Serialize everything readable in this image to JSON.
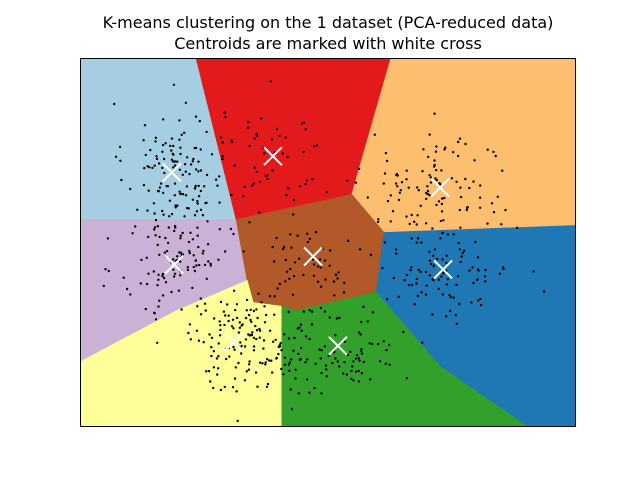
{
  "chart_data": {
    "type": "scatter",
    "title": "K-means clustering on the 1 dataset (PCA-reduced data)",
    "subtitle": "Centroids are marked with white cross",
    "xlabel": "",
    "ylabel": "",
    "xlim": [
      0,
      100
    ],
    "ylim": [
      0,
      100
    ],
    "xticks": [],
    "yticks": [],
    "grid": false,
    "legend": "none",
    "regions": [
      {
        "color": "#a6cee3",
        "polygon": [
          [
            0,
            100
          ],
          [
            23.4,
            100
          ],
          [
            31.5,
            56.2
          ],
          [
            0,
            56.2
          ]
        ]
      },
      {
        "color": "#e31a1c",
        "polygon": [
          [
            23.4,
            100
          ],
          [
            62.7,
            100
          ],
          [
            54.8,
            63.0
          ],
          [
            31.5,
            56.2
          ]
        ]
      },
      {
        "color": "#fdbf6f",
        "polygon": [
          [
            62.7,
            100
          ],
          [
            100,
            100
          ],
          [
            100,
            54.6
          ],
          [
            61.3,
            52.7
          ],
          [
            54.8,
            63.0
          ]
        ]
      },
      {
        "color": "#cab2d6",
        "polygon": [
          [
            0,
            56.2
          ],
          [
            31.5,
            56.2
          ],
          [
            33.7,
            39.7
          ],
          [
            19.4,
            31.5
          ],
          [
            0,
            17.6
          ]
        ]
      },
      {
        "color": "#b15928",
        "polygon": [
          [
            31.5,
            56.2
          ],
          [
            54.8,
            63.0
          ],
          [
            61.3,
            52.7
          ],
          [
            59.7,
            36.5
          ],
          [
            43.5,
            31.5
          ],
          [
            34.9,
            33.7
          ],
          [
            33.7,
            39.7
          ]
        ]
      },
      {
        "color": "#1f78b4",
        "polygon": [
          [
            61.3,
            52.7
          ],
          [
            100,
            54.6
          ],
          [
            100,
            0
          ],
          [
            90.3,
            0
          ],
          [
            72.6,
            16.4
          ],
          [
            59.7,
            36.5
          ]
        ]
      },
      {
        "color": "#ffff99",
        "polygon": [
          [
            0,
            17.6
          ],
          [
            19.4,
            31.5
          ],
          [
            33.7,
            39.7
          ],
          [
            34.9,
            33.7
          ],
          [
            40.7,
            32.7
          ],
          [
            40.7,
            0
          ],
          [
            0,
            0
          ]
        ]
      },
      {
        "color": "#33a02c",
        "polygon": [
          [
            40.7,
            32.7
          ],
          [
            43.5,
            31.5
          ],
          [
            59.7,
            36.5
          ],
          [
            72.6,
            16.4
          ],
          [
            90.3,
            0
          ],
          [
            40.7,
            0
          ]
        ]
      }
    ],
    "centroids": [
      {
        "x": 18.5,
        "y": 69.0
      },
      {
        "x": 38.9,
        "y": 73.4
      },
      {
        "x": 72.6,
        "y": 64.9
      },
      {
        "x": 19.0,
        "y": 44.0
      },
      {
        "x": 47.0,
        "y": 46.2
      },
      {
        "x": 73.2,
        "y": 42.7
      },
      {
        "x": 31.0,
        "y": 23.0
      },
      {
        "x": 52.0,
        "y": 22.0
      }
    ],
    "point_clusters": [
      {
        "cx": 19.0,
        "cy": 70.0,
        "sx": 5.0,
        "sy": 9.0,
        "n": 120
      },
      {
        "cx": 38.5,
        "cy": 73.0,
        "sx": 6.5,
        "sy": 8.0,
        "n": 55
      },
      {
        "cx": 72.5,
        "cy": 66.0,
        "sx": 7.5,
        "sy": 7.0,
        "n": 95
      },
      {
        "cx": 19.0,
        "cy": 45.0,
        "sx": 5.5,
        "sy": 8.0,
        "n": 105
      },
      {
        "cx": 47.0,
        "cy": 46.0,
        "sx": 5.0,
        "sy": 6.0,
        "n": 45
      },
      {
        "cx": 73.0,
        "cy": 43.0,
        "sx": 7.0,
        "sy": 7.0,
        "n": 105
      },
      {
        "cx": 33.0,
        "cy": 23.0,
        "sx": 6.0,
        "sy": 6.5,
        "n": 140
      },
      {
        "cx": 52.0,
        "cy": 21.0,
        "sx": 6.0,
        "sy": 6.5,
        "n": 95
      }
    ],
    "colors": {
      "point": "#000000",
      "centroid": "#ffffff",
      "axes_border": "#000000"
    }
  }
}
